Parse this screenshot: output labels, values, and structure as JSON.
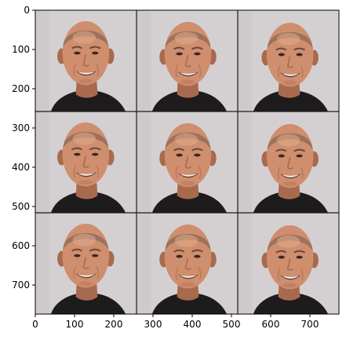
{
  "chart_data": {
    "type": "image",
    "title": "",
    "xlabel": "",
    "ylabel": "",
    "image_extent": {
      "width": 774,
      "height": 774
    },
    "xlim": [
      0,
      774
    ],
    "ylim": [
      774,
      0
    ],
    "xticks": [
      0,
      100,
      200,
      300,
      400,
      500,
      600,
      700
    ],
    "yticks": [
      0,
      100,
      200,
      300,
      400,
      500,
      600,
      700
    ],
    "grid": false,
    "image_grid": {
      "rows": 3,
      "cols": 3,
      "tile_size": 258,
      "separator_color": "#1c1c1c",
      "subject": "face-portrait"
    },
    "colors": {
      "background": "#d4d0d1",
      "skin": "#cf8e6e",
      "skin_shadow": "#a86a4e",
      "hair": "#6f5b51",
      "shirt": "#1d1b1c",
      "teeth": "#f3f0ea",
      "mouth": "#6d3c33",
      "eyes": "#3b2722",
      "axis": "#000000"
    }
  }
}
